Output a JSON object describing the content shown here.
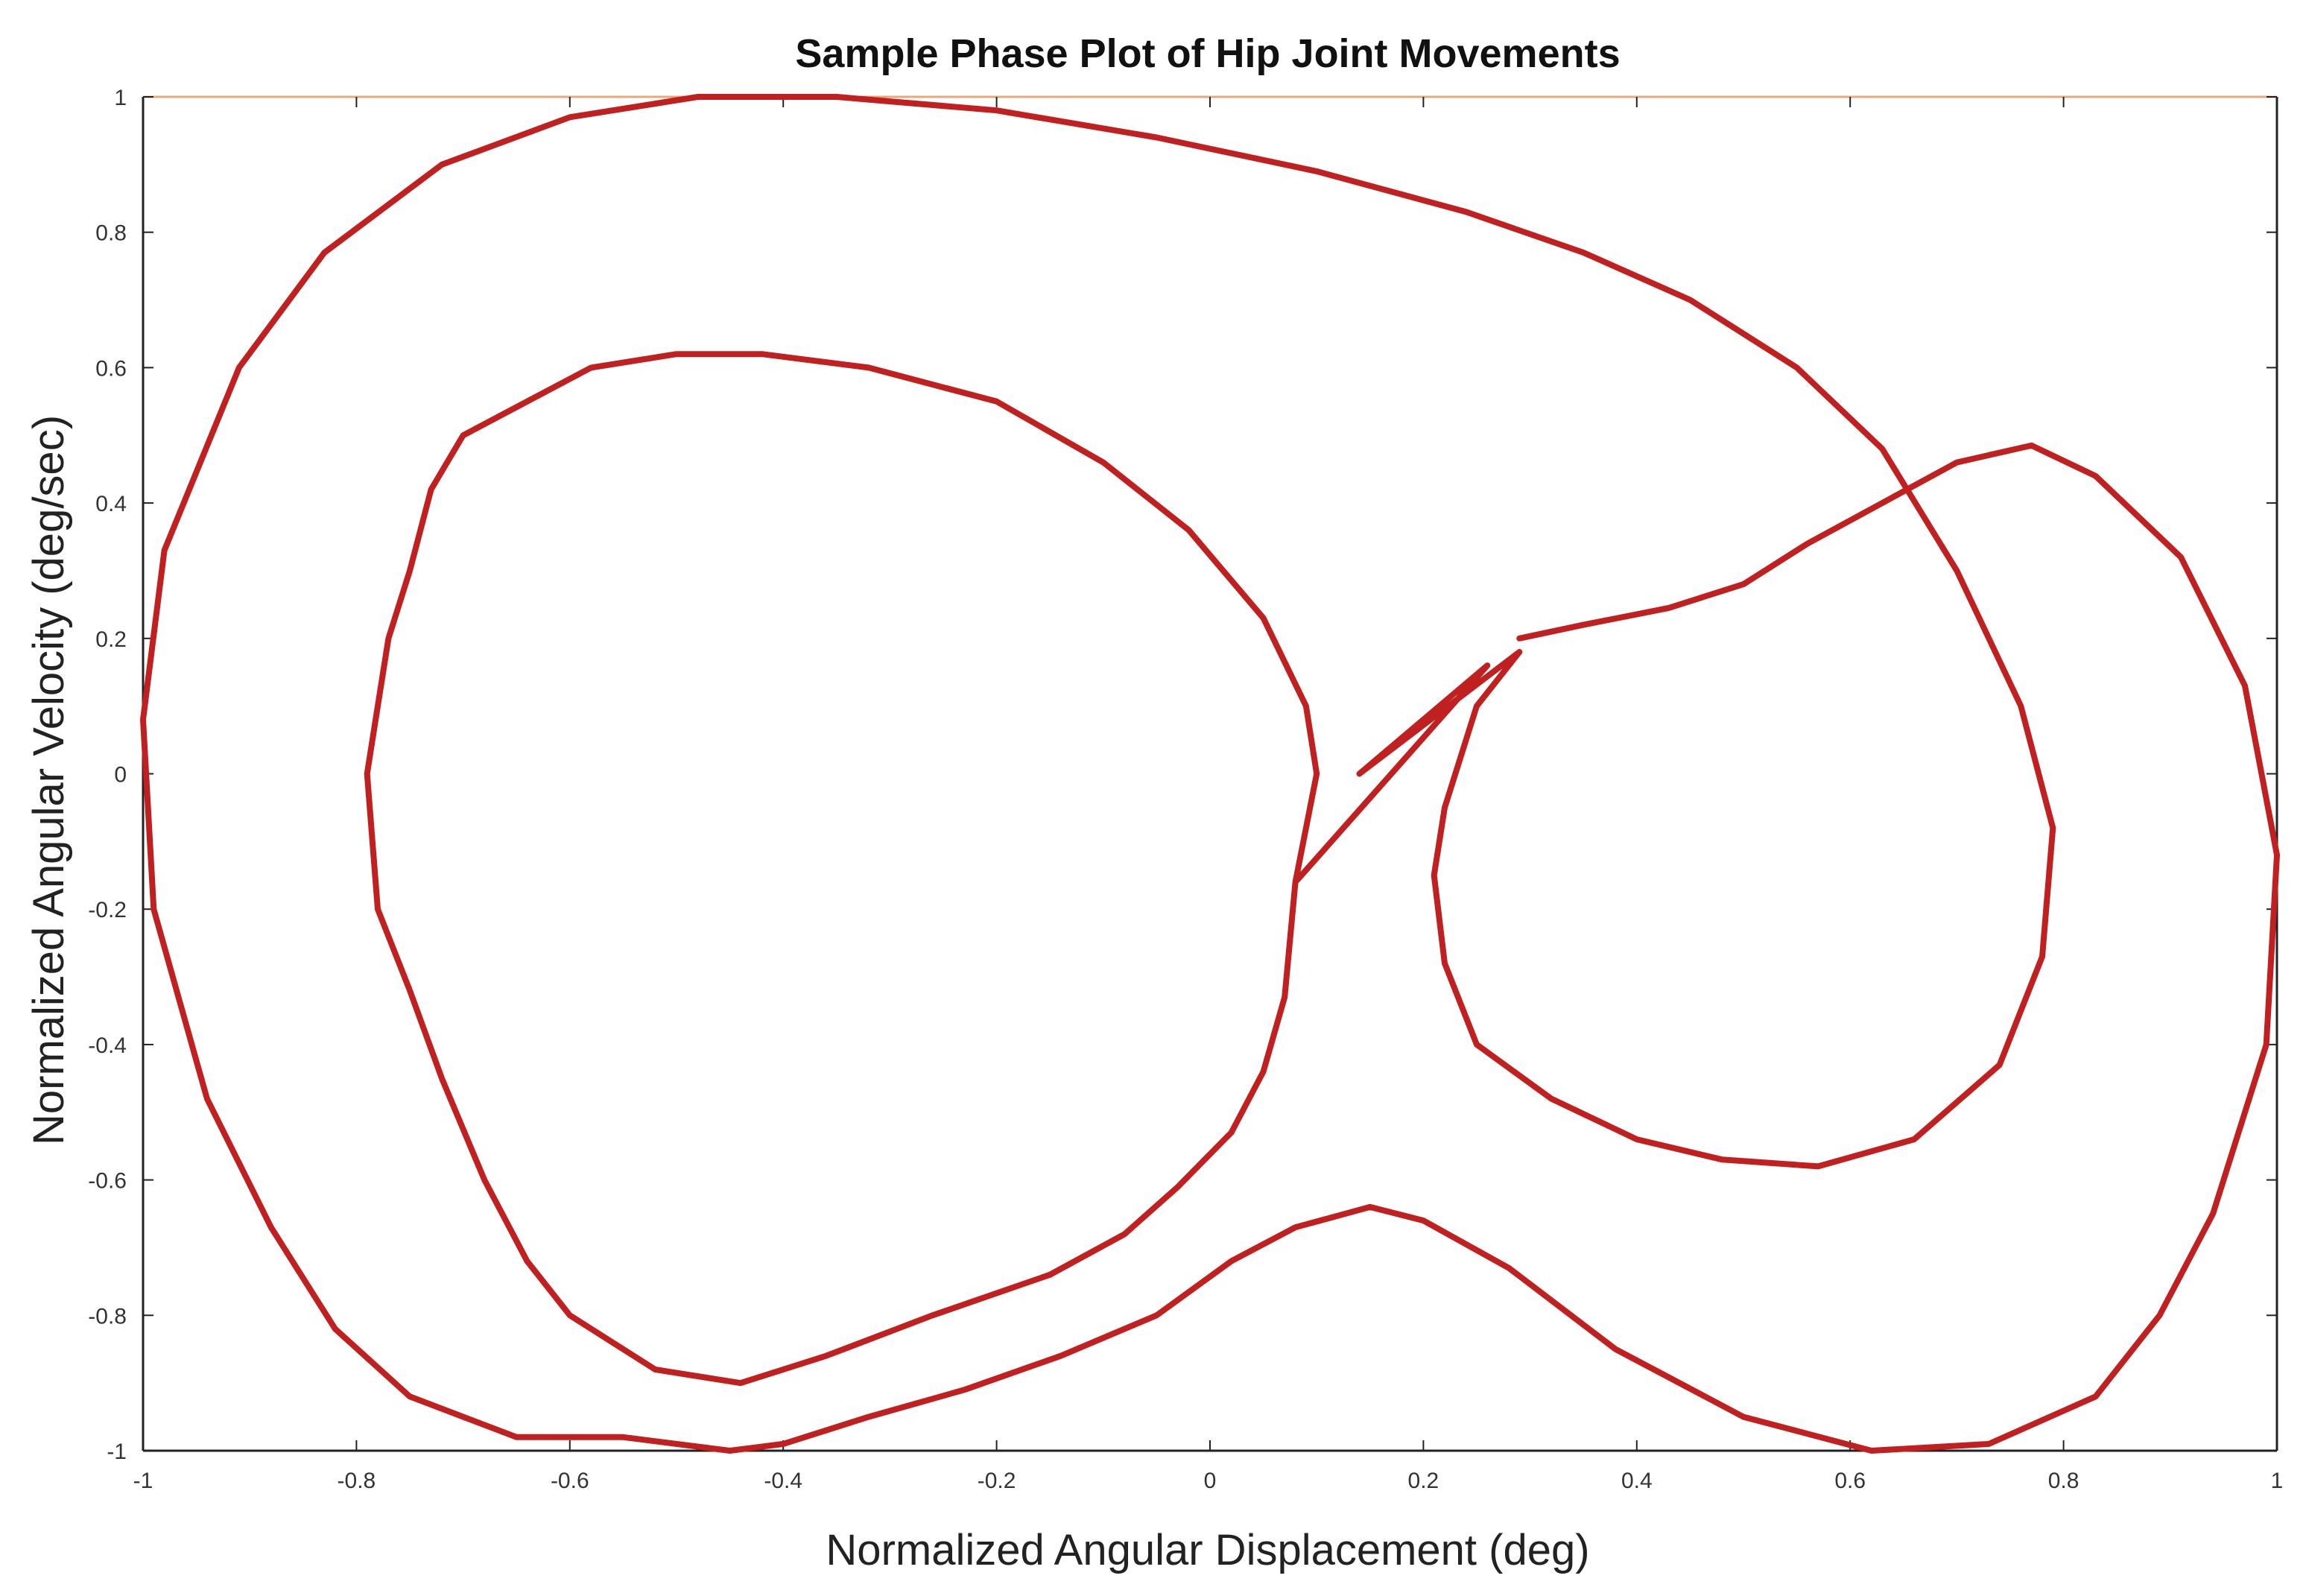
{
  "chart_data": {
    "type": "line",
    "title": "Sample Phase Plot of Hip Joint Movements",
    "xlabel": "Normalized Angular Displacement (deg)",
    "ylabel": "Normalized Angular Velocity (deg/sec)",
    "xlim": [
      -1,
      1
    ],
    "ylim": [
      -1,
      1
    ],
    "grid": false,
    "x_tick_labels": [
      "-1",
      "-0.8",
      "-0.6",
      "-0.4",
      "-0.2",
      "0",
      "0.2",
      "0.4",
      "0.6",
      "0.8",
      "1"
    ],
    "y_tick_labels": [
      "1",
      "0.8",
      "0.6",
      "0.4",
      "0.2",
      "0",
      "-0.2",
      "-0.4",
      "-0.6",
      "-0.8",
      "-1"
    ],
    "colors": {
      "curve": "#c0201f",
      "top_border": "#e8a878",
      "axes": "#222222"
    },
    "series": [
      {
        "values": [
          [
            0.29,
            0.2
          ],
          [
            0.35,
            0.22
          ],
          [
            0.43,
            0.245
          ],
          [
            0.5,
            0.28
          ],
          [
            0.56,
            0.34
          ],
          [
            0.63,
            0.4
          ],
          [
            0.7,
            0.46
          ],
          [
            0.77,
            0.485
          ],
          [
            0.83,
            0.44
          ],
          [
            0.91,
            0.32
          ],
          [
            0.97,
            0.13
          ],
          [
            1.0,
            -0.12
          ],
          [
            0.99,
            -0.4
          ],
          [
            0.94,
            -0.65
          ],
          [
            0.89,
            -0.8
          ],
          [
            0.83,
            -0.92
          ],
          [
            0.73,
            -0.99
          ],
          [
            0.62,
            -1.0
          ],
          [
            0.5,
            -0.95
          ],
          [
            0.38,
            -0.85
          ],
          [
            0.28,
            -0.73
          ],
          [
            0.2,
            -0.66
          ],
          [
            0.15,
            -0.64
          ],
          [
            0.08,
            -0.67
          ],
          [
            0.02,
            -0.72
          ],
          [
            -0.05,
            -0.8
          ],
          [
            -0.14,
            -0.86
          ],
          [
            -0.23,
            -0.91
          ],
          [
            -0.32,
            -0.95
          ],
          [
            -0.4,
            -0.99
          ],
          [
            -0.45,
            -1.0
          ],
          [
            -0.55,
            -0.98
          ],
          [
            -0.65,
            -0.98
          ],
          [
            -0.75,
            -0.92
          ],
          [
            -0.82,
            -0.82
          ],
          [
            -0.88,
            -0.67
          ],
          [
            -0.94,
            -0.48
          ],
          [
            -0.99,
            -0.2
          ],
          [
            -1.0,
            0.08
          ],
          [
            -0.98,
            0.33
          ],
          [
            -0.91,
            0.6
          ],
          [
            -0.83,
            0.77
          ],
          [
            -0.72,
            0.9
          ],
          [
            -0.6,
            0.97
          ],
          [
            -0.48,
            1.0
          ],
          [
            -0.35,
            1.0
          ],
          [
            -0.2,
            0.98
          ],
          [
            -0.05,
            0.94
          ],
          [
            0.1,
            0.89
          ],
          [
            0.24,
            0.83
          ],
          [
            0.35,
            0.77
          ],
          [
            0.45,
            0.7
          ],
          [
            0.55,
            0.6
          ],
          [
            0.63,
            0.48
          ],
          [
            0.7,
            0.3
          ],
          [
            0.76,
            0.1
          ],
          [
            0.79,
            -0.08
          ],
          [
            0.78,
            -0.27
          ],
          [
            0.74,
            -0.43
          ],
          [
            0.66,
            -0.54
          ],
          [
            0.57,
            -0.58
          ],
          [
            0.48,
            -0.57
          ],
          [
            0.4,
            -0.54
          ],
          [
            0.32,
            -0.48
          ],
          [
            0.25,
            -0.4
          ],
          [
            0.22,
            -0.28
          ],
          [
            0.21,
            -0.15
          ],
          [
            0.22,
            -0.05
          ],
          [
            0.25,
            0.1
          ],
          [
            0.29,
            0.18
          ],
          [
            0.14,
            0.0
          ],
          [
            0.26,
            0.16
          ],
          [
            0.08,
            -0.16
          ],
          [
            0.07,
            -0.33
          ],
          [
            0.05,
            -0.44
          ],
          [
            0.02,
            -0.53
          ],
          [
            -0.03,
            -0.61
          ],
          [
            -0.08,
            -0.68
          ],
          [
            -0.15,
            -0.74
          ],
          [
            -0.26,
            -0.8
          ],
          [
            -0.36,
            -0.86
          ],
          [
            -0.44,
            -0.9
          ],
          [
            -0.52,
            -0.88
          ],
          [
            -0.6,
            -0.8
          ],
          [
            -0.64,
            -0.72
          ],
          [
            -0.68,
            -0.6
          ],
          [
            -0.72,
            -0.45
          ],
          [
            -0.75,
            -0.32
          ],
          [
            -0.78,
            -0.2
          ],
          [
            -0.79,
            0.0
          ],
          [
            -0.78,
            0.1
          ],
          [
            -0.77,
            0.2
          ],
          [
            -0.75,
            0.3
          ],
          [
            -0.73,
            0.42
          ],
          [
            -0.7,
            0.5
          ],
          [
            -0.64,
            0.55
          ],
          [
            -0.58,
            0.6
          ],
          [
            -0.5,
            0.62
          ],
          [
            -0.42,
            0.62
          ],
          [
            -0.32,
            0.6
          ],
          [
            -0.2,
            0.55
          ],
          [
            -0.1,
            0.46
          ],
          [
            -0.02,
            0.36
          ],
          [
            0.05,
            0.23
          ],
          [
            0.09,
            0.1
          ],
          [
            0.1,
            0.0
          ],
          [
            0.08,
            -0.16
          ]
        ]
      }
    ]
  }
}
